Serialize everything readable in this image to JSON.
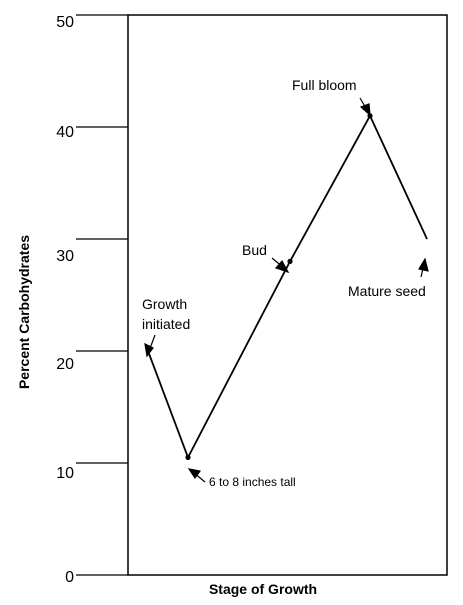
{
  "chart_data": {
    "type": "line",
    "title": "",
    "xlabel": "Stage of Growth",
    "ylabel": "Percent Carbohydrates",
    "ylim": [
      0,
      50
    ],
    "yticks": [
      "0",
      "10",
      "20",
      "30",
      "40",
      "50"
    ],
    "grid": false,
    "series": [
      {
        "points": [
          {
            "stage": "Growth initiated",
            "y": 20
          },
          {
            "stage": "6 to 8 inches tall",
            "y": 10.5
          },
          {
            "stage": "Bud",
            "y": 28
          },
          {
            "stage": "Full bloom",
            "y": 41
          },
          {
            "stage": "Mature seed",
            "y": 30
          }
        ]
      }
    ],
    "annotations": {
      "growth_line1": "Growth",
      "growth_line2": "initiated",
      "six_to_eight": "6 to 8 inches tall",
      "bud": "Bud",
      "full_bloom": "Full bloom",
      "mature_seed": "Mature seed"
    }
  }
}
